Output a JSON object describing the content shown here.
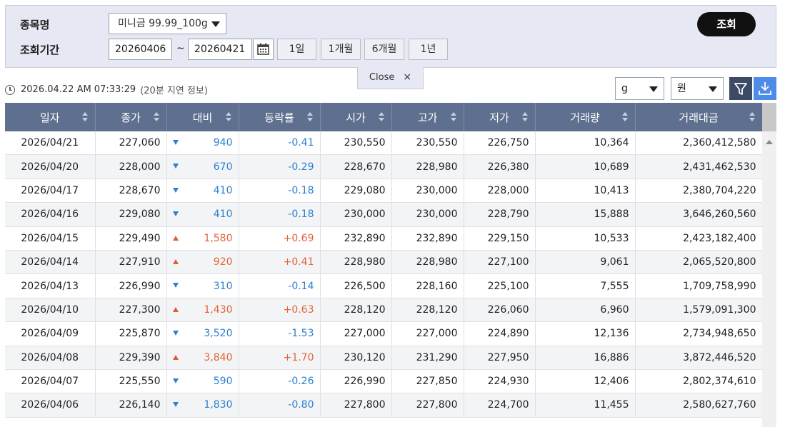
{
  "filter": {
    "item_label": "종목명",
    "item_value": "미니금 99.99_100g",
    "period_label": "조회기간",
    "start_date": "20260406",
    "separator": "~",
    "end_date": "20260421",
    "periods": [
      "1일",
      "1개월",
      "6개월",
      "1년"
    ],
    "search_label": "조회"
  },
  "close_tab": {
    "label": "Close",
    "icon": "×"
  },
  "status": {
    "timestamp": "2026.04.22 AM 07:33:29",
    "note": "(20분 지연 정보)"
  },
  "units": {
    "weight": "g",
    "currency": "원"
  },
  "table": {
    "headers": [
      "일자",
      "종가",
      "대비",
      "등락률",
      "시가",
      "고가",
      "저가",
      "거래량",
      "거래대금"
    ],
    "rows": [
      {
        "date": "2026/04/21",
        "close": "227,060",
        "dir": "down",
        "change": "940",
        "rate": "-0.41",
        "open": "230,550",
        "high": "230,550",
        "low": "226,750",
        "volume": "10,364",
        "amount": "2,360,412,580"
      },
      {
        "date": "2026/04/20",
        "close": "228,000",
        "dir": "down",
        "change": "670",
        "rate": "-0.29",
        "open": "228,670",
        "high": "228,980",
        "low": "226,380",
        "volume": "10,689",
        "amount": "2,431,462,530"
      },
      {
        "date": "2026/04/17",
        "close": "228,670",
        "dir": "down",
        "change": "410",
        "rate": "-0.18",
        "open": "229,080",
        "high": "230,000",
        "low": "228,000",
        "volume": "10,413",
        "amount": "2,380,704,220"
      },
      {
        "date": "2026/04/16",
        "close": "229,080",
        "dir": "down",
        "change": "410",
        "rate": "-0.18",
        "open": "230,000",
        "high": "230,000",
        "low": "228,790",
        "volume": "15,888",
        "amount": "3,646,260,560"
      },
      {
        "date": "2026/04/15",
        "close": "229,490",
        "dir": "up",
        "change": "1,580",
        "rate": "+0.69",
        "open": "232,890",
        "high": "232,890",
        "low": "229,150",
        "volume": "10,533",
        "amount": "2,423,182,400"
      },
      {
        "date": "2026/04/14",
        "close": "227,910",
        "dir": "up",
        "change": "920",
        "rate": "+0.41",
        "open": "228,980",
        "high": "228,980",
        "low": "227,100",
        "volume": "9,061",
        "amount": "2,065,520,800"
      },
      {
        "date": "2026/04/13",
        "close": "226,990",
        "dir": "down",
        "change": "310",
        "rate": "-0.14",
        "open": "226,500",
        "high": "228,160",
        "low": "225,100",
        "volume": "7,555",
        "amount": "1,709,758,990"
      },
      {
        "date": "2026/04/10",
        "close": "227,300",
        "dir": "up",
        "change": "1,430",
        "rate": "+0.63",
        "open": "228,120",
        "high": "228,120",
        "low": "226,060",
        "volume": "6,960",
        "amount": "1,579,091,300"
      },
      {
        "date": "2026/04/09",
        "close": "225,870",
        "dir": "down",
        "change": "3,520",
        "rate": "-1.53",
        "open": "227,000",
        "high": "227,000",
        "low": "224,890",
        "volume": "12,136",
        "amount": "2,734,948,650"
      },
      {
        "date": "2026/04/08",
        "close": "229,390",
        "dir": "up",
        "change": "3,840",
        "rate": "+1.70",
        "open": "230,120",
        "high": "231,290",
        "low": "227,950",
        "volume": "16,886",
        "amount": "3,872,446,520"
      },
      {
        "date": "2026/04/07",
        "close": "225,550",
        "dir": "down",
        "change": "590",
        "rate": "-0.26",
        "open": "226,990",
        "high": "227,850",
        "low": "224,930",
        "volume": "12,406",
        "amount": "2,802,374,610"
      },
      {
        "date": "2026/04/06",
        "close": "226,140",
        "dir": "down",
        "change": "1,830",
        "rate": "-0.80",
        "open": "227,800",
        "high": "227,800",
        "low": "224,700",
        "volume": "11,455",
        "amount": "2,580,627,760"
      }
    ]
  },
  "colors": {
    "down": "#2d7fd0",
    "up": "#e2643a",
    "header_bg": "#5e6f8f",
    "panel_bg": "#e6e8f3"
  }
}
